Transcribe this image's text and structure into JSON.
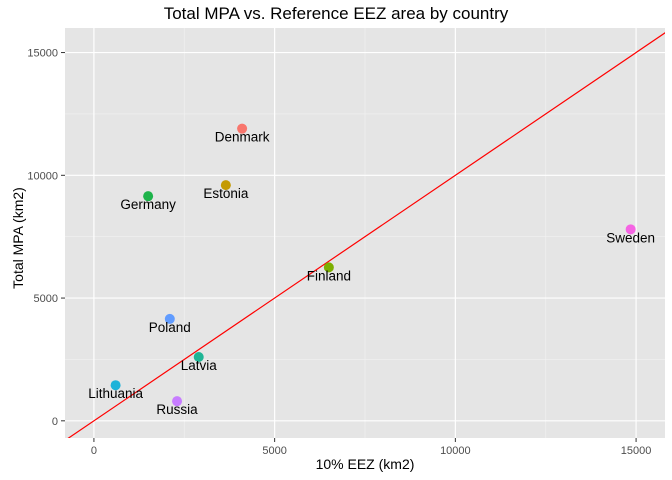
{
  "chart_data": {
    "type": "scatter",
    "title": "Total MPA vs. Reference EEZ area by country",
    "xlabel": "10% EEZ (km2)",
    "ylabel": "Total MPA (km2)",
    "xlim": [
      -800,
      15800
    ],
    "ylim": [
      -700,
      16000
    ],
    "xticks": [
      0,
      5000,
      10000,
      15000
    ],
    "yticks": [
      0,
      5000,
      10000,
      15000
    ],
    "grid": true,
    "panel_background": "#e5e5e5",
    "reference_line": {
      "slope": 1,
      "intercept": 0,
      "color": "#ff0000"
    },
    "points": [
      {
        "label": "Denmark",
        "x": 4100,
        "y": 11900,
        "color": "#f8766d"
      },
      {
        "label": "Estonia",
        "x": 3650,
        "y": 9600,
        "color": "#c49a00"
      },
      {
        "label": "Finland",
        "x": 6500,
        "y": 6250,
        "color": "#7cae00"
      },
      {
        "label": "Germany",
        "x": 1500,
        "y": 9150,
        "color": "#1eb34a"
      },
      {
        "label": "Latvia",
        "x": 2900,
        "y": 2600,
        "color": "#1eb595"
      },
      {
        "label": "Lithuania",
        "x": 600,
        "y": 1450,
        "color": "#1eb3d9"
      },
      {
        "label": "Poland",
        "x": 2100,
        "y": 4150,
        "color": "#619cff"
      },
      {
        "label": "Russia",
        "x": 2300,
        "y": 800,
        "color": "#c77cff"
      },
      {
        "label": "Sweden",
        "x": 14850,
        "y": 7800,
        "color": "#f564e3"
      }
    ]
  }
}
